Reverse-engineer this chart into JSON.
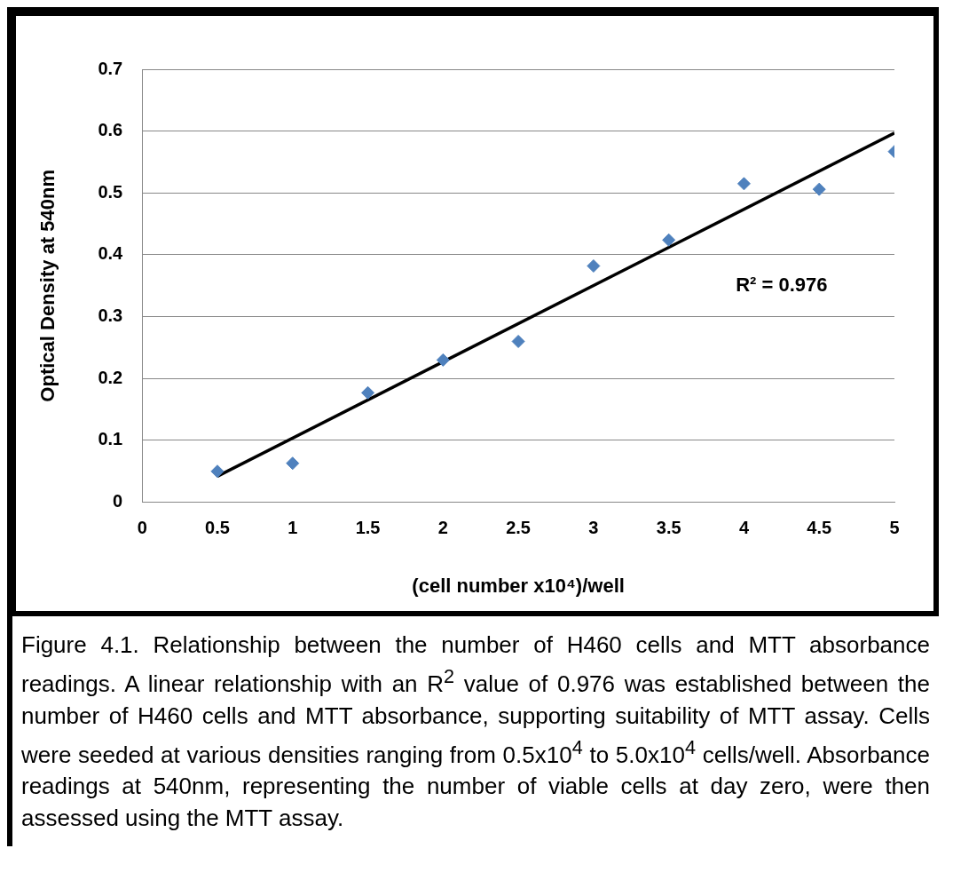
{
  "chart_data": {
    "type": "scatter",
    "xlabel": "(cell number x10⁴)/well",
    "ylabel": "Optical Density at 540nm",
    "x": [
      0.5,
      1,
      1.5,
      2,
      2.5,
      3,
      3.5,
      4,
      4.5,
      5
    ],
    "series": [
      {
        "color": "#4f81bd",
        "marker": "diamond",
        "values": [
          0.05,
          0.063,
          0.177,
          0.23,
          0.26,
          0.382,
          0.424,
          0.515,
          0.506,
          0.567
        ]
      },
      {
        "type": "line",
        "color": "#000000",
        "marker": "none",
        "x": [
          0.5,
          5
        ],
        "values": [
          0.042,
          0.597
        ]
      }
    ],
    "xlim": [
      0,
      5
    ],
    "xticks": [
      0,
      0.5,
      1,
      1.5,
      2,
      2.5,
      3,
      3.5,
      4,
      4.5,
      5
    ],
    "ylim": [
      0,
      0.7
    ],
    "yticks": [
      0,
      0.1,
      0.2,
      0.3,
      0.4,
      0.5,
      0.6,
      0.7
    ],
    "grid": "y",
    "legend": false,
    "annotations": [
      "R² = 0.976",
      "Figure 4.1. Relationship between the number of H460 cells and MTT absorbance readings. A linear relationship with an R$^{2}$ value of 0.976 was established between the number of H460 cells and MTT absorbance, supporting suitability of MTT assay. Cells were seeded at various densities ranging from 0.5x10$^{4}$ to 5.0x10$^{4}$ cells/well. Absorbance readings at 540nm, representing the number of viable cells at day zero, were then assessed using the MTT assay."
    ]
  }
}
